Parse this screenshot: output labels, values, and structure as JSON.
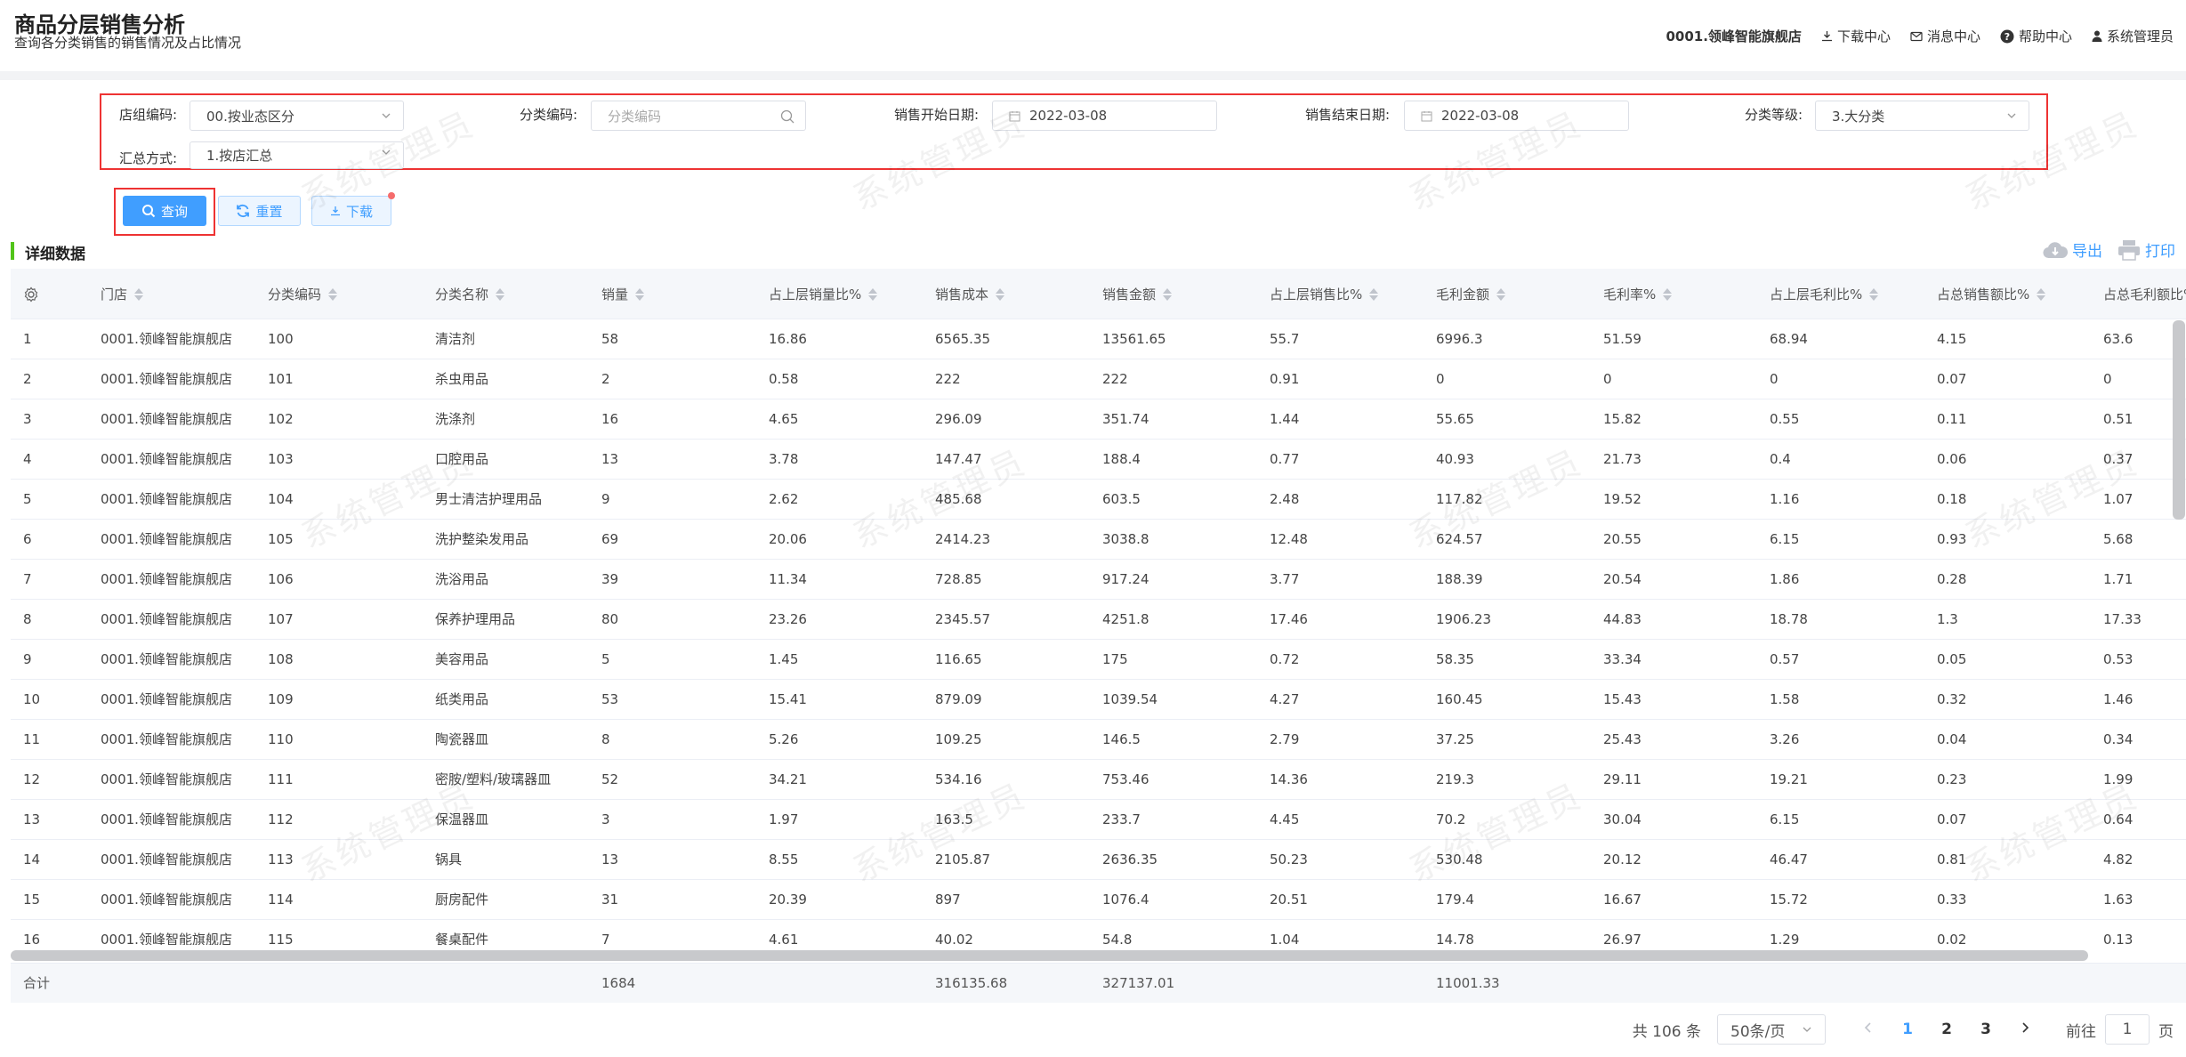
{
  "header": {
    "title": "商品分层销售分析",
    "subtitle": "查询各分类销售的销售情况及占比情况",
    "store": "0001.领峰智能旗舰店",
    "download_center": "下载中心",
    "message_center": "消息中心",
    "help_center": "帮助中心",
    "user": "系统管理员"
  },
  "watermark": "系统管理员",
  "filters": {
    "store_group_label": "店组编码:",
    "store_group_value": "00.按业态区分",
    "category_code_label": "分类编码:",
    "category_code_placeholder": "分类编码",
    "start_date_label": "销售开始日期:",
    "start_date_value": "2022-03-08",
    "end_date_label": "销售结束日期:",
    "end_date_value": "2022-03-08",
    "category_level_label": "分类等级:",
    "category_level_value": "3.大分类",
    "summary_label": "汇总方式:",
    "summary_value": "1.按店汇总"
  },
  "actions": {
    "query": "查询",
    "reset": "重置",
    "download": "下载"
  },
  "section": {
    "title": "详细数据",
    "export": "导出",
    "print": "打印"
  },
  "columns": [
    "门店",
    "分类编码",
    "分类名称",
    "销量",
    "占上层销量比%",
    "销售成本",
    "销售金额",
    "占上层销售比%",
    "毛利金额",
    "毛利率%",
    "占上层毛利比%",
    "占总销售额比%",
    "占总毛利额比%"
  ],
  "rows": [
    [
      "1",
      "0001.领峰智能旗舰店",
      "100",
      "清洁剂",
      "58",
      "16.86",
      "6565.35",
      "13561.65",
      "55.7",
      "6996.3",
      "51.59",
      "68.94",
      "4.15",
      "63.6"
    ],
    [
      "2",
      "0001.领峰智能旗舰店",
      "101",
      "杀虫用品",
      "2",
      "0.58",
      "222",
      "222",
      "0.91",
      "0",
      "0",
      "0",
      "0.07",
      "0"
    ],
    [
      "3",
      "0001.领峰智能旗舰店",
      "102",
      "洗涤剂",
      "16",
      "4.65",
      "296.09",
      "351.74",
      "1.44",
      "55.65",
      "15.82",
      "0.55",
      "0.11",
      "0.51"
    ],
    [
      "4",
      "0001.领峰智能旗舰店",
      "103",
      "口腔用品",
      "13",
      "3.78",
      "147.47",
      "188.4",
      "0.77",
      "40.93",
      "21.73",
      "0.4",
      "0.06",
      "0.37"
    ],
    [
      "5",
      "0001.领峰智能旗舰店",
      "104",
      "男士清洁护理用品",
      "9",
      "2.62",
      "485.68",
      "603.5",
      "2.48",
      "117.82",
      "19.52",
      "1.16",
      "0.18",
      "1.07"
    ],
    [
      "6",
      "0001.领峰智能旗舰店",
      "105",
      "洗护整染发用品",
      "69",
      "20.06",
      "2414.23",
      "3038.8",
      "12.48",
      "624.57",
      "20.55",
      "6.15",
      "0.93",
      "5.68"
    ],
    [
      "7",
      "0001.领峰智能旗舰店",
      "106",
      "洗浴用品",
      "39",
      "11.34",
      "728.85",
      "917.24",
      "3.77",
      "188.39",
      "20.54",
      "1.86",
      "0.28",
      "1.71"
    ],
    [
      "8",
      "0001.领峰智能旗舰店",
      "107",
      "保养护理用品",
      "80",
      "23.26",
      "2345.57",
      "4251.8",
      "17.46",
      "1906.23",
      "44.83",
      "18.78",
      "1.3",
      "17.33"
    ],
    [
      "9",
      "0001.领峰智能旗舰店",
      "108",
      "美容用品",
      "5",
      "1.45",
      "116.65",
      "175",
      "0.72",
      "58.35",
      "33.34",
      "0.57",
      "0.05",
      "0.53"
    ],
    [
      "10",
      "0001.领峰智能旗舰店",
      "109",
      "纸类用品",
      "53",
      "15.41",
      "879.09",
      "1039.54",
      "4.27",
      "160.45",
      "15.43",
      "1.58",
      "0.32",
      "1.46"
    ],
    [
      "11",
      "0001.领峰智能旗舰店",
      "110",
      "陶瓷器皿",
      "8",
      "5.26",
      "109.25",
      "146.5",
      "2.79",
      "37.25",
      "25.43",
      "3.26",
      "0.04",
      "0.34"
    ],
    [
      "12",
      "0001.领峰智能旗舰店",
      "111",
      "密胺/塑料/玻璃器皿",
      "52",
      "34.21",
      "534.16",
      "753.46",
      "14.36",
      "219.3",
      "29.11",
      "19.21",
      "0.23",
      "1.99"
    ],
    [
      "13",
      "0001.领峰智能旗舰店",
      "112",
      "保温器皿",
      "3",
      "1.97",
      "163.5",
      "233.7",
      "4.45",
      "70.2",
      "30.04",
      "6.15",
      "0.07",
      "0.64"
    ],
    [
      "14",
      "0001.领峰智能旗舰店",
      "113",
      "锅具",
      "13",
      "8.55",
      "2105.87",
      "2636.35",
      "50.23",
      "530.48",
      "20.12",
      "46.47",
      "0.81",
      "4.82"
    ],
    [
      "15",
      "0001.领峰智能旗舰店",
      "114",
      "厨房配件",
      "31",
      "20.39",
      "897",
      "1076.4",
      "20.51",
      "179.4",
      "16.67",
      "15.72",
      "0.33",
      "1.63"
    ],
    [
      "16",
      "0001.领峰智能旗舰店",
      "115",
      "餐桌配件",
      "7",
      "4.61",
      "40.02",
      "54.8",
      "1.04",
      "14.78",
      "26.97",
      "1.29",
      "0.02",
      "0.13"
    ]
  ],
  "footer": {
    "label": "合计",
    "qty": "1684",
    "cost": "316135.68",
    "amount": "327137.01",
    "gross": "11001.33"
  },
  "pagination": {
    "total": "共 106 条",
    "page_size": "50条/页",
    "pages": [
      "1",
      "2",
      "3"
    ],
    "current": "1",
    "goto_prefix": "前往",
    "goto_value": "1",
    "goto_suffix": "页"
  },
  "colors": {
    "primary": "#409eff",
    "highlight": "#e33",
    "section_bar": "#52c41a"
  }
}
